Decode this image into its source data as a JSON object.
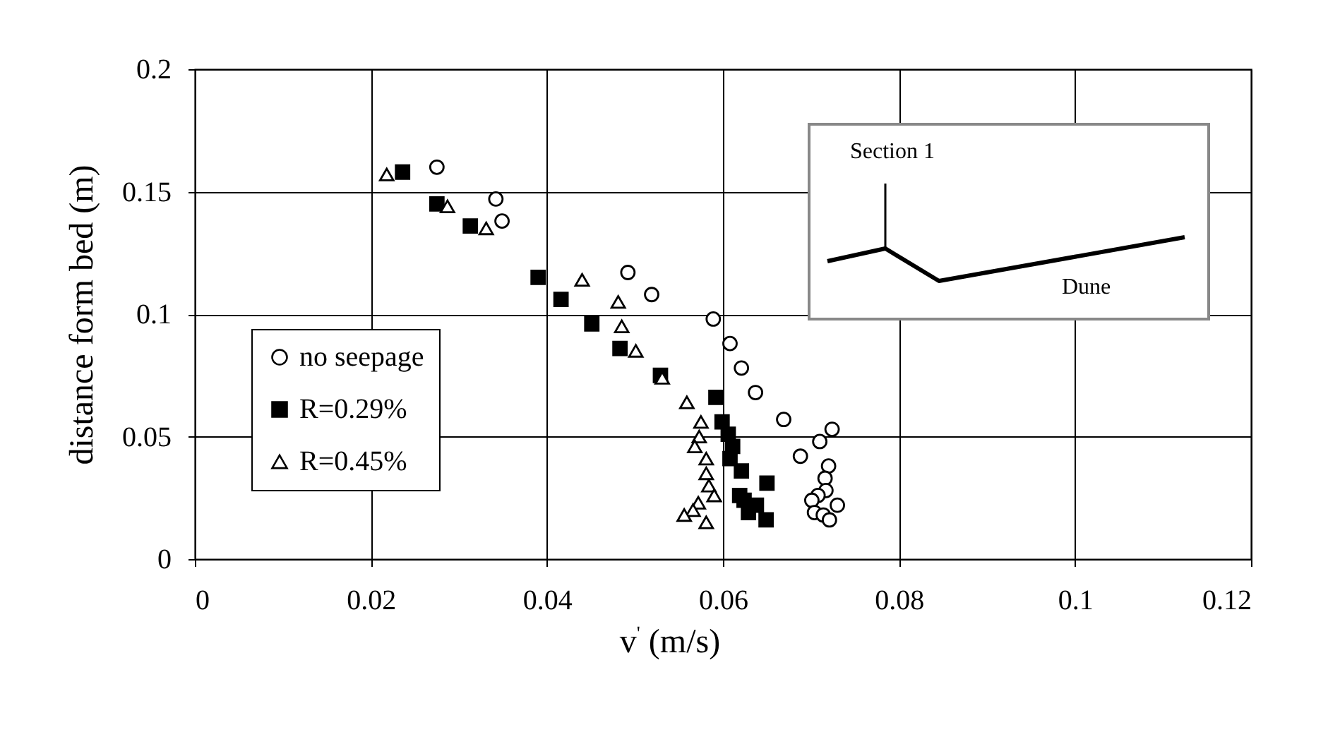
{
  "chart_data": {
    "type": "scatter",
    "xlabel": "v$^{'}$ (m/s)",
    "ylabel": "distance form bed (m)",
    "xlim": [
      0,
      0.12
    ],
    "xticks": [
      0,
      0.02,
      0.04,
      0.06,
      0.08,
      0.1,
      0.12
    ],
    "ylim": [
      0,
      0.2
    ],
    "yticks": [
      0,
      0.05,
      0.1,
      0.15,
      0.2
    ],
    "grid": true,
    "legend": "left",
    "annotations": [
      "Section 1",
      "Dune"
    ],
    "series": [
      {
        "name": "no seepage",
        "color": "#000000",
        "marker": "circle",
        "x": [
          0.0275,
          0.0342,
          0.0349,
          0.0492,
          0.0519,
          0.0589,
          0.0608,
          0.0621,
          0.0637,
          0.0669,
          0.0724,
          0.071,
          0.0688,
          0.072,
          0.0716,
          0.0717,
          0.0708,
          0.0701,
          0.073,
          0.0704,
          0.0714,
          0.0721
        ],
        "values": [
          0.16,
          0.147,
          0.138,
          0.117,
          0.108,
          0.098,
          0.088,
          0.078,
          0.068,
          0.057,
          0.053,
          0.048,
          0.042,
          0.038,
          0.033,
          0.028,
          0.026,
          0.024,
          0.022,
          0.019,
          0.018,
          0.016
        ]
      },
      {
        "name": "R=0.29%",
        "color": "#000000",
        "marker": "square",
        "x": [
          0.0236,
          0.0275,
          0.0313,
          0.039,
          0.0416,
          0.0451,
          0.0483,
          0.0529,
          0.0592,
          0.0599,
          0.0606,
          0.0611,
          0.0608,
          0.0621,
          0.065,
          0.0619,
          0.0624,
          0.0629,
          0.0638,
          0.0649
        ],
        "values": [
          0.158,
          0.145,
          0.136,
          0.115,
          0.106,
          0.096,
          0.086,
          0.075,
          0.066,
          0.056,
          0.051,
          0.046,
          0.041,
          0.036,
          0.031,
          0.026,
          0.024,
          0.019,
          0.022,
          0.016
        ]
      },
      {
        "name": "R=0.45%",
        "color": "#000000",
        "marker": "triangle",
        "x": [
          0.0218,
          0.0287,
          0.0331,
          0.044,
          0.0481,
          0.0485,
          0.0501,
          0.0531,
          0.0559,
          0.0575,
          0.0573,
          0.0568,
          0.0581,
          0.0581,
          0.0584,
          0.059,
          0.0572,
          0.0566,
          0.0556,
          0.0581
        ],
        "values": [
          0.157,
          0.144,
          0.135,
          0.114,
          0.105,
          0.095,
          0.085,
          0.074,
          0.064,
          0.056,
          0.05,
          0.046,
          0.041,
          0.035,
          0.03,
          0.026,
          0.023,
          0.02,
          0.018,
          0.015
        ]
      }
    ]
  }
}
